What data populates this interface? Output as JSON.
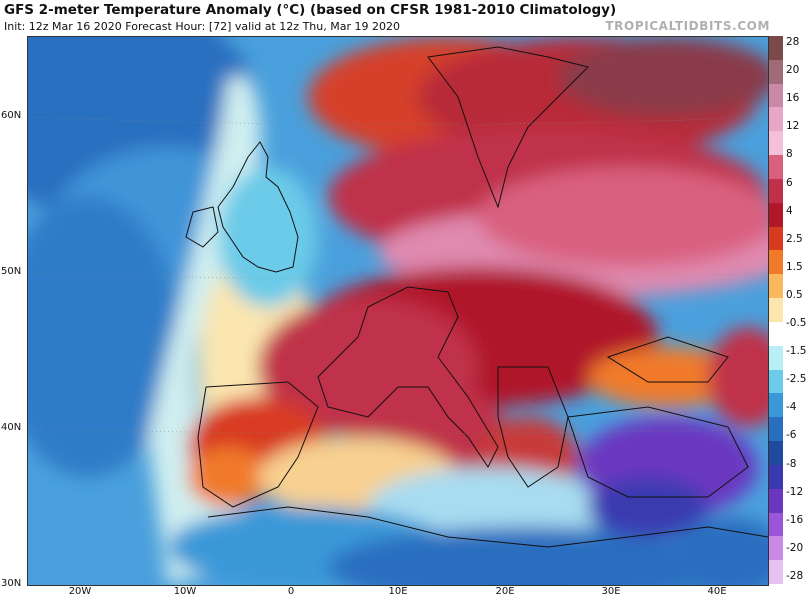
{
  "title": "GFS 2-meter Temperature Anomaly (°C) (based on CFSR 1981-2010 Climatology)",
  "subtitle": "Init: 12z Mar 16 2020   Forecast Hour: [72]   valid at 12z Thu, Mar 19 2020",
  "brand": "TROPICALTIDBITS.COM",
  "lat_labels": [
    "60N",
    "50N",
    "40N",
    "30N"
  ],
  "lon_labels": [
    "20W",
    "10W",
    "0",
    "10E",
    "20E",
    "30E",
    "40E"
  ],
  "colorbar": {
    "labels": [
      "28",
      "20",
      "16",
      "12",
      "8",
      "6",
      "4",
      "2.5",
      "1.5",
      "0.5",
      "-0.5",
      "-1.5",
      "-2.5",
      "-4",
      "-6",
      "-8",
      "-12",
      "-16",
      "-20",
      "-28"
    ],
    "colors": [
      "#7a4a4a",
      "#a06a78",
      "#c98aa8",
      "#e6a6c8",
      "#f3c1d9",
      "#d9607f",
      "#c0304a",
      "#b0182a",
      "#d83a20",
      "#f07a2a",
      "#f8b860",
      "#fbe6b0",
      "#ffffff",
      "#b8eef4",
      "#6ccbe8",
      "#3a98d8",
      "#2a6ec0",
      "#1f4aa0",
      "#3a3ab0",
      "#6a38c0",
      "#9a56d8",
      "#c88ae6",
      "#e6c2f0"
    ]
  }
}
